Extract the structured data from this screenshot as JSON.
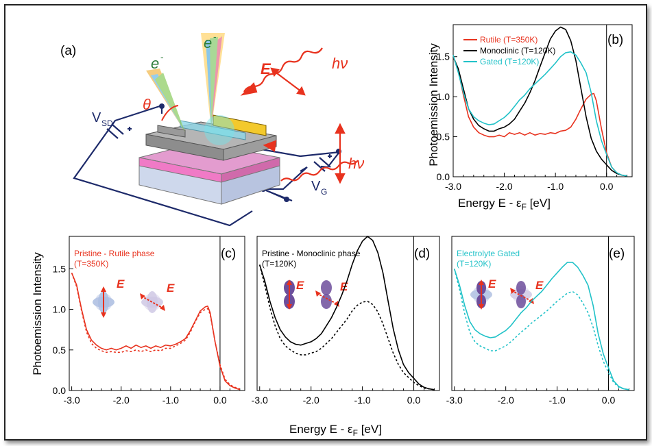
{
  "figure": {
    "panel_a": {
      "label": "(a)",
      "electron_label_1": "e",
      "electron_label_1_sup": "-",
      "electron_label_2": "e",
      "electron_label_2_sup": "-",
      "field_label": "E",
      "photon_label": "hν",
      "photon_label_2": "hν",
      "angle_label": "θ",
      "vsd_label": "V",
      "vsd_sub": "SD",
      "vg_label": "V",
      "vg_sub": "G"
    },
    "shared_xlabel_bottom": "Energy  E - ε",
    "shared_xlabel_sub": "F",
    "shared_xlabel_unit": " [eV]",
    "shared_ylabel": "Photoemission Intensity"
  },
  "chart_data": [
    {
      "id": "b",
      "type": "line",
      "panel_label": "(b)",
      "ylabel": "Photoemission Intensity",
      "xlabel": "Energy  E - εF [eV]",
      "xlim": [
        -3.0,
        0.5
      ],
      "ylim": [
        0.0,
        1.9
      ],
      "xticks": [
        -3.0,
        -2.0,
        -1.0,
        0.0
      ],
      "xtick_labels": [
        "-3.0",
        "-2.0",
        "-1.0",
        "0.0"
      ],
      "yticks": [
        0.0,
        0.5,
        1.0,
        1.5
      ],
      "ytick_labels": [
        "0.0",
        "0.5",
        "1.0",
        "1.5"
      ],
      "fermi_line": 0.0,
      "legend_position": "top-left",
      "series": [
        {
          "name": "Rutile (T=350K)",
          "color": "#e8321e",
          "x": [
            -3.0,
            -2.9,
            -2.8,
            -2.7,
            -2.6,
            -2.5,
            -2.4,
            -2.3,
            -2.2,
            -2.1,
            -2.0,
            -1.9,
            -1.8,
            -1.7,
            -1.6,
            -1.5,
            -1.4,
            -1.3,
            -1.2,
            -1.1,
            -1.0,
            -0.9,
            -0.8,
            -0.7,
            -0.6,
            -0.5,
            -0.4,
            -0.3,
            -0.25,
            -0.2,
            -0.1,
            0.0,
            0.1,
            0.2,
            0.3,
            0.4
          ],
          "y": [
            1.5,
            1.32,
            1.02,
            0.75,
            0.62,
            0.55,
            0.52,
            0.5,
            0.5,
            0.52,
            0.5,
            0.55,
            0.53,
            0.55,
            0.52,
            0.55,
            0.52,
            0.54,
            0.53,
            0.55,
            0.54,
            0.57,
            0.58,
            0.62,
            0.72,
            0.85,
            0.97,
            1.03,
            1.04,
            0.95,
            0.6,
            0.3,
            0.12,
            0.05,
            0.02,
            0.01
          ]
        },
        {
          "name": "Monoclinic (T=120K)",
          "color": "#000000",
          "x": [
            -3.0,
            -2.9,
            -2.8,
            -2.7,
            -2.6,
            -2.5,
            -2.4,
            -2.3,
            -2.2,
            -2.1,
            -2.0,
            -1.9,
            -1.8,
            -1.7,
            -1.6,
            -1.5,
            -1.4,
            -1.3,
            -1.2,
            -1.1,
            -1.0,
            -0.9,
            -0.8,
            -0.7,
            -0.6,
            -0.5,
            -0.4,
            -0.3,
            -0.2,
            -0.1,
            0.0,
            0.1,
            0.2,
            0.3,
            0.4
          ],
          "y": [
            1.5,
            1.35,
            1.1,
            0.85,
            0.72,
            0.64,
            0.6,
            0.57,
            0.57,
            0.6,
            0.62,
            0.66,
            0.72,
            0.82,
            0.92,
            1.05,
            1.2,
            1.38,
            1.55,
            1.72,
            1.82,
            1.87,
            1.84,
            1.7,
            1.45,
            1.1,
            0.75,
            0.48,
            0.32,
            0.22,
            0.15,
            0.08,
            0.04,
            0.02,
            0.01
          ]
        },
        {
          "name": "Gated (T=120K)",
          "color": "#21c2c8",
          "x": [
            -3.0,
            -2.9,
            -2.8,
            -2.7,
            -2.6,
            -2.5,
            -2.4,
            -2.3,
            -2.2,
            -2.1,
            -2.0,
            -1.9,
            -1.8,
            -1.7,
            -1.6,
            -1.5,
            -1.4,
            -1.3,
            -1.2,
            -1.1,
            -1.0,
            -0.9,
            -0.8,
            -0.7,
            -0.6,
            -0.5,
            -0.4,
            -0.3,
            -0.2,
            -0.1,
            0.0,
            0.1,
            0.2,
            0.3,
            0.4
          ],
          "y": [
            1.52,
            1.3,
            1.05,
            0.85,
            0.75,
            0.7,
            0.67,
            0.65,
            0.66,
            0.7,
            0.74,
            0.8,
            0.88,
            0.96,
            1.02,
            1.1,
            1.16,
            1.22,
            1.28,
            1.35,
            1.42,
            1.5,
            1.55,
            1.56,
            1.52,
            1.42,
            1.3,
            1.05,
            0.7,
            0.45,
            0.28,
            0.12,
            0.05,
            0.02,
            0.01
          ]
        }
      ]
    },
    {
      "id": "c",
      "type": "line",
      "panel_label": "(c)",
      "title": "Pristine - Rutile phase",
      "subtitle": "(T=350K)",
      "title_color": "#e8321e",
      "field_label": "E",
      "ylabel": "Photoemission Intensity",
      "xlim": [
        -3.05,
        0.5
      ],
      "ylim": [
        0.0,
        1.9
      ],
      "xticks": [
        -3.0,
        -2.0,
        -1.0,
        0.0
      ],
      "xtick_labels": [
        "-3.0",
        "-2.0",
        "-1.0",
        "0.0"
      ],
      "yticks": [
        0.0,
        0.5,
        1.0,
        1.5
      ],
      "ytick_labels": [
        "0.0",
        "0.5",
        "1.0",
        "1.5"
      ],
      "fermi_line": 0.0,
      "series": [
        {
          "name": "",
          "color": "#e8321e",
          "dashed": false,
          "x": [
            -3.0,
            -2.9,
            -2.8,
            -2.7,
            -2.6,
            -2.5,
            -2.4,
            -2.3,
            -2.2,
            -2.1,
            -2.0,
            -1.9,
            -1.8,
            -1.7,
            -1.6,
            -1.5,
            -1.4,
            -1.3,
            -1.2,
            -1.1,
            -1.0,
            -0.9,
            -0.8,
            -0.7,
            -0.6,
            -0.5,
            -0.4,
            -0.3,
            -0.25,
            -0.2,
            -0.1,
            0.0,
            0.1,
            0.2,
            0.3,
            0.4
          ],
          "y": [
            1.45,
            1.3,
            1.0,
            0.75,
            0.62,
            0.56,
            0.52,
            0.5,
            0.52,
            0.5,
            0.52,
            0.55,
            0.52,
            0.56,
            0.53,
            0.55,
            0.52,
            0.55,
            0.53,
            0.56,
            0.55,
            0.57,
            0.6,
            0.64,
            0.74,
            0.86,
            0.98,
            1.03,
            1.04,
            0.96,
            0.6,
            0.3,
            0.12,
            0.06,
            0.03,
            0.01
          ]
        },
        {
          "name": "",
          "color": "#e8321e",
          "dashed": true,
          "x": [
            -3.0,
            -2.9,
            -2.8,
            -2.7,
            -2.6,
            -2.5,
            -2.4,
            -2.3,
            -2.2,
            -2.1,
            -2.0,
            -1.9,
            -1.8,
            -1.7,
            -1.6,
            -1.5,
            -1.4,
            -1.3,
            -1.2,
            -1.1,
            -1.0,
            -0.9,
            -0.8,
            -0.7,
            -0.6,
            -0.5,
            -0.4,
            -0.3,
            -0.25,
            -0.2,
            -0.1,
            0.0,
            0.1,
            0.2,
            0.3,
            0.4
          ],
          "y": [
            1.45,
            1.28,
            0.98,
            0.72,
            0.58,
            0.52,
            0.49,
            0.47,
            0.48,
            0.47,
            0.47,
            0.49,
            0.48,
            0.5,
            0.48,
            0.5,
            0.48,
            0.5,
            0.49,
            0.52,
            0.52,
            0.55,
            0.58,
            0.62,
            0.72,
            0.85,
            0.96,
            1.0,
            1.01,
            0.94,
            0.6,
            0.32,
            0.14,
            0.07,
            0.04,
            0.02
          ]
        }
      ]
    },
    {
      "id": "d",
      "type": "line",
      "panel_label": "(d)",
      "title": "Pristine - Monoclinic phase",
      "subtitle": "(T=120K)",
      "title_color": "#000000",
      "field_label": "E",
      "xlim": [
        -3.05,
        0.5
      ],
      "ylim": [
        0.0,
        1.9
      ],
      "xticks": [
        -3.0,
        -2.0,
        -1.0,
        0.0
      ],
      "xtick_labels": [
        "-3.0",
        "-2.0",
        "-1.0",
        "0.0"
      ],
      "fermi_line": 0.0,
      "series": [
        {
          "name": "",
          "color": "#000000",
          "dashed": false,
          "x": [
            -3.0,
            -2.9,
            -2.8,
            -2.7,
            -2.6,
            -2.5,
            -2.4,
            -2.3,
            -2.2,
            -2.1,
            -2.0,
            -1.9,
            -1.8,
            -1.7,
            -1.6,
            -1.5,
            -1.4,
            -1.3,
            -1.2,
            -1.1,
            -1.0,
            -0.9,
            -0.8,
            -0.7,
            -0.6,
            -0.5,
            -0.4,
            -0.3,
            -0.2,
            -0.1,
            0.0,
            0.1,
            0.2,
            0.3,
            0.4
          ],
          "y": [
            1.55,
            1.35,
            1.1,
            0.9,
            0.75,
            0.66,
            0.6,
            0.57,
            0.56,
            0.58,
            0.6,
            0.64,
            0.7,
            0.8,
            0.9,
            1.03,
            1.18,
            1.35,
            1.55,
            1.72,
            1.84,
            1.9,
            1.85,
            1.7,
            1.45,
            1.1,
            0.76,
            0.5,
            0.32,
            0.22,
            0.15,
            0.08,
            0.04,
            0.02,
            0.01
          ]
        },
        {
          "name": "",
          "color": "#000000",
          "dashed": true,
          "x": [
            -3.0,
            -2.9,
            -2.8,
            -2.7,
            -2.6,
            -2.5,
            -2.4,
            -2.3,
            -2.2,
            -2.1,
            -2.0,
            -1.9,
            -1.8,
            -1.7,
            -1.6,
            -1.5,
            -1.4,
            -1.3,
            -1.2,
            -1.1,
            -1.0,
            -0.9,
            -0.8,
            -0.7,
            -0.6,
            -0.5,
            -0.4,
            -0.3,
            -0.2,
            -0.1,
            0.0,
            0.1,
            0.2,
            0.3,
            0.4
          ],
          "y": [
            1.55,
            1.3,
            1.02,
            0.8,
            0.64,
            0.55,
            0.5,
            0.46,
            0.44,
            0.44,
            0.46,
            0.48,
            0.52,
            0.58,
            0.64,
            0.72,
            0.8,
            0.88,
            0.98,
            1.05,
            1.09,
            1.1,
            1.06,
            0.97,
            0.82,
            0.64,
            0.46,
            0.32,
            0.22,
            0.16,
            0.1,
            0.06,
            0.03,
            0.02,
            0.01
          ]
        }
      ]
    },
    {
      "id": "e",
      "type": "line",
      "panel_label": "(e)",
      "title": "Electrolyte Gated",
      "subtitle": "(T=120K)",
      "title_color": "#21c2c8",
      "field_label": "E",
      "xlim": [
        -3.05,
        0.5
      ],
      "ylim": [
        0.0,
        1.9
      ],
      "xticks": [
        -3.0,
        -2.0,
        -1.0,
        0.0
      ],
      "xtick_labels": [
        "-3.0",
        "-2.0",
        "-1.0",
        "0.0"
      ],
      "fermi_line": 0.0,
      "series": [
        {
          "name": "",
          "color": "#21c2c8",
          "dashed": false,
          "x": [
            -3.0,
            -2.9,
            -2.8,
            -2.7,
            -2.6,
            -2.5,
            -2.4,
            -2.3,
            -2.2,
            -2.1,
            -2.0,
            -1.9,
            -1.8,
            -1.7,
            -1.6,
            -1.5,
            -1.4,
            -1.3,
            -1.2,
            -1.1,
            -1.0,
            -0.9,
            -0.8,
            -0.7,
            -0.6,
            -0.5,
            -0.4,
            -0.3,
            -0.2,
            -0.1,
            0.0,
            0.1,
            0.2,
            0.3,
            0.4
          ],
          "y": [
            1.5,
            1.3,
            1.05,
            0.85,
            0.75,
            0.7,
            0.67,
            0.65,
            0.66,
            0.7,
            0.74,
            0.8,
            0.88,
            0.96,
            1.02,
            1.1,
            1.16,
            1.22,
            1.3,
            1.38,
            1.45,
            1.52,
            1.58,
            1.58,
            1.52,
            1.42,
            1.3,
            1.05,
            0.7,
            0.45,
            0.28,
            0.12,
            0.05,
            0.02,
            0.01
          ]
        },
        {
          "name": "",
          "color": "#21c2c8",
          "dashed": true,
          "x": [
            -3.0,
            -2.9,
            -2.8,
            -2.7,
            -2.6,
            -2.5,
            -2.4,
            -2.3,
            -2.2,
            -2.1,
            -2.0,
            -1.9,
            -1.8,
            -1.7,
            -1.6,
            -1.5,
            -1.4,
            -1.3,
            -1.2,
            -1.1,
            -1.0,
            -0.9,
            -0.8,
            -0.7,
            -0.6,
            -0.5,
            -0.4,
            -0.3,
            -0.2,
            -0.1,
            0.0,
            0.1,
            0.2,
            0.3,
            0.4
          ],
          "y": [
            1.5,
            1.25,
            0.95,
            0.72,
            0.6,
            0.55,
            0.52,
            0.49,
            0.49,
            0.52,
            0.55,
            0.6,
            0.66,
            0.72,
            0.77,
            0.83,
            0.88,
            0.93,
            0.98,
            1.04,
            1.1,
            1.15,
            1.2,
            1.22,
            1.18,
            1.08,
            0.96,
            0.78,
            0.55,
            0.36,
            0.22,
            0.1,
            0.04,
            0.02,
            0.01
          ]
        }
      ]
    }
  ]
}
